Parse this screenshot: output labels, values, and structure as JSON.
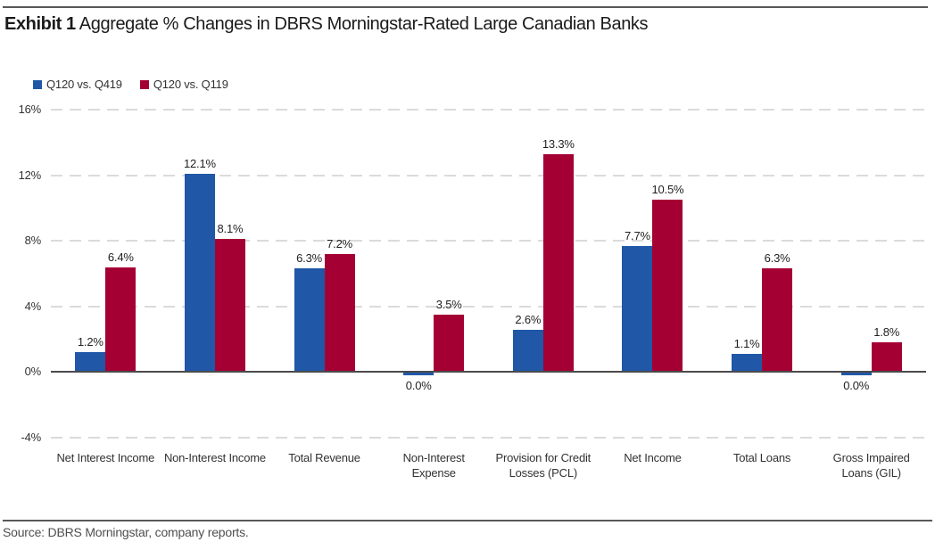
{
  "header": {
    "exhibit_label": "Exhibit 1",
    "title_rest": " Aggregate % Changes in DBRS Morningstar-Rated Large Canadian Banks"
  },
  "footer": {
    "source": "Source: DBRS Morningstar, company reports."
  },
  "chart_data": {
    "type": "bar",
    "title": "Exhibit 1 Aggregate % Changes in DBRS Morningstar-Rated Large Canadian Banks",
    "categories": [
      "Net Interest Income",
      "Non-Interest Income",
      "Total Revenue",
      "Non-Interest\nExpense",
      "Provision for Credit\nLosses (PCL)",
      "Net Income",
      "Total Loans",
      "Gross Impaired\nLoans (GIL)"
    ],
    "series": [
      {
        "name": "Q120 vs. Q419",
        "color": "#2057A7",
        "values": [
          1.2,
          12.1,
          6.3,
          0.0,
          2.6,
          7.7,
          1.1,
          0.0
        ],
        "labels": [
          "1.2%",
          "12.1%",
          "6.3%",
          "0.0%",
          "2.6%",
          "7.7%",
          "1.1%",
          "0.0%"
        ]
      },
      {
        "name": "Q120 vs. Q119",
        "color": "#A50034",
        "values": [
          6.4,
          8.1,
          7.2,
          3.5,
          13.3,
          10.5,
          6.3,
          1.8
        ],
        "labels": [
          "6.4%",
          "8.1%",
          "7.2%",
          "3.5%",
          "13.3%",
          "10.5%",
          "6.3%",
          "1.8%"
        ]
      }
    ],
    "xlabel": "",
    "ylabel": "",
    "ylim": [
      -4,
      16
    ],
    "ytick_step": 4,
    "ytick_labels": [
      "16%",
      "12%",
      "8%",
      "4%",
      "0%",
      "-4%"
    ],
    "grid": "horizontal dashed",
    "legend_position": "top-left",
    "colors": {
      "gridline": "#DBDBDB",
      "zero_axis": "#4A4A4C",
      "rule": "#58585A"
    }
  }
}
